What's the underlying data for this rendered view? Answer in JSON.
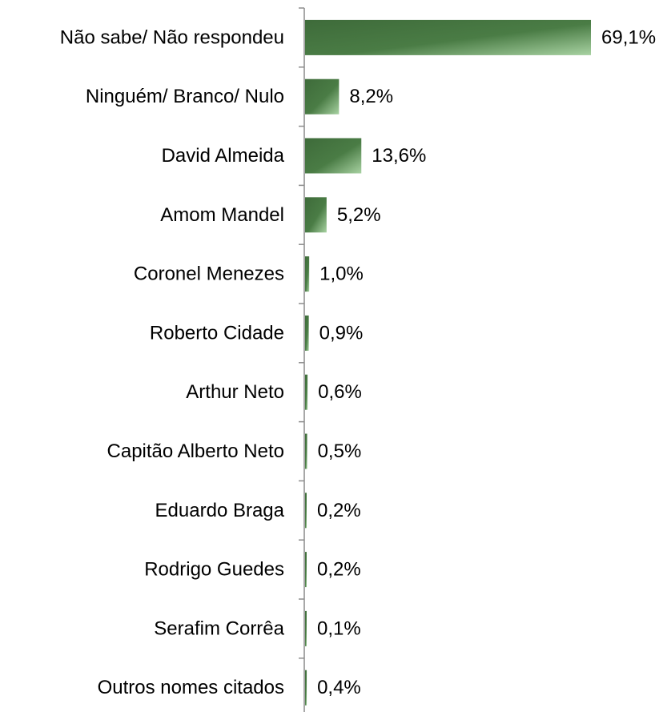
{
  "chart_data": {
    "type": "bar",
    "orientation": "horizontal",
    "categories": [
      "Não sabe/ Não respondeu",
      "Ninguém/ Branco/ Nulo",
      "David Almeida",
      "Amom Mandel",
      "Coronel Menezes",
      "Roberto Cidade",
      "Arthur Neto",
      "Capitão Alberto Neto",
      "Eduardo Braga",
      "Rodrigo Guedes",
      "Serafim Corrêa",
      "Outros nomes citados"
    ],
    "values": [
      69.1,
      8.2,
      13.6,
      5.2,
      1.0,
      0.9,
      0.6,
      0.5,
      0.2,
      0.2,
      0.1,
      0.4
    ],
    "value_labels": [
      "69,1%",
      "8,2%",
      "13,6%",
      "5,2%",
      "1,0%",
      "0,9%",
      "0,6%",
      "0,5%",
      "0,2%",
      "0,2%",
      "0,1%",
      "0,4%"
    ],
    "title": "",
    "xlabel": "",
    "ylabel": "",
    "xlim": [
      0,
      69.1
    ],
    "grid": false,
    "legend": "none",
    "colors": {
      "bar_dark": "#3e6b3a",
      "bar_light": "#a8d2a2",
      "axis": "#8c8c8c"
    }
  }
}
